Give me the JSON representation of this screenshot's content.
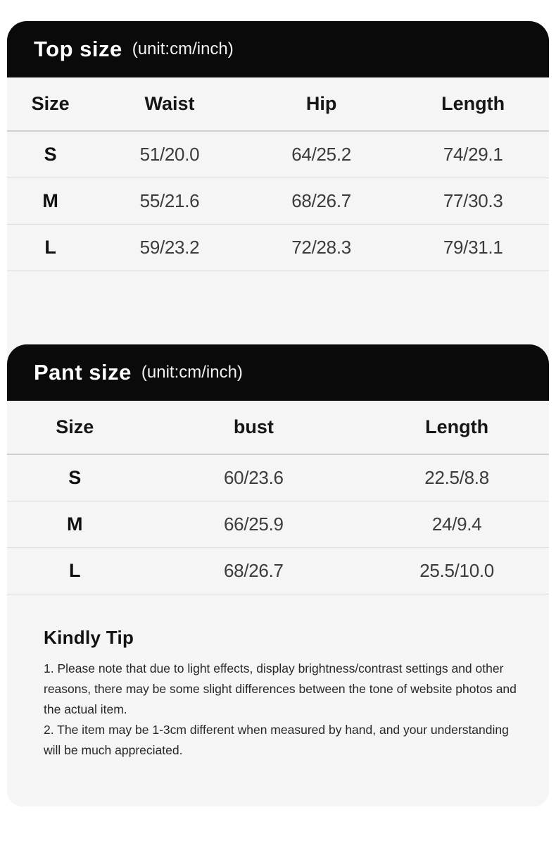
{
  "colors": {
    "page_background": "#ffffff",
    "card_background": "#f5f5f6",
    "header_background": "#0a0a0a",
    "header_text": "#ffffff"
  },
  "top_size": {
    "title": "Top size",
    "unit": "(unit:cm/inch)",
    "columns": [
      "Size",
      "Waist",
      "Hip",
      "Length"
    ],
    "rows": [
      {
        "size": "S",
        "values": [
          "51/20.0",
          "64/25.2",
          "74/29.1"
        ]
      },
      {
        "size": "M",
        "values": [
          "55/21.6",
          "68/26.7",
          "77/30.3"
        ]
      },
      {
        "size": "L",
        "values": [
          "59/23.2",
          "72/28.3",
          "79/31.1"
        ]
      }
    ]
  },
  "pant_size": {
    "title": "Pant size",
    "unit": "(unit:cm/inch)",
    "columns": [
      "Size",
      "bust",
      "Length"
    ],
    "rows": [
      {
        "size": "S",
        "values": [
          "60/23.6",
          "22.5/8.8"
        ]
      },
      {
        "size": "M",
        "values": [
          "66/25.9",
          "24/9.4"
        ]
      },
      {
        "size": "L",
        "values": [
          "68/26.7",
          "25.5/10.0"
        ]
      }
    ]
  },
  "kindly_tip": {
    "title": "Kindly Tip",
    "notes": [
      "1. Please note that due to light effects, display brightness/contrast settings and other reasons, there may be some slight differences between the tone of website photos and the actual item.",
      "2. The item may be 1-3cm different when measured by hand, and your understanding will be much appreciated."
    ]
  }
}
